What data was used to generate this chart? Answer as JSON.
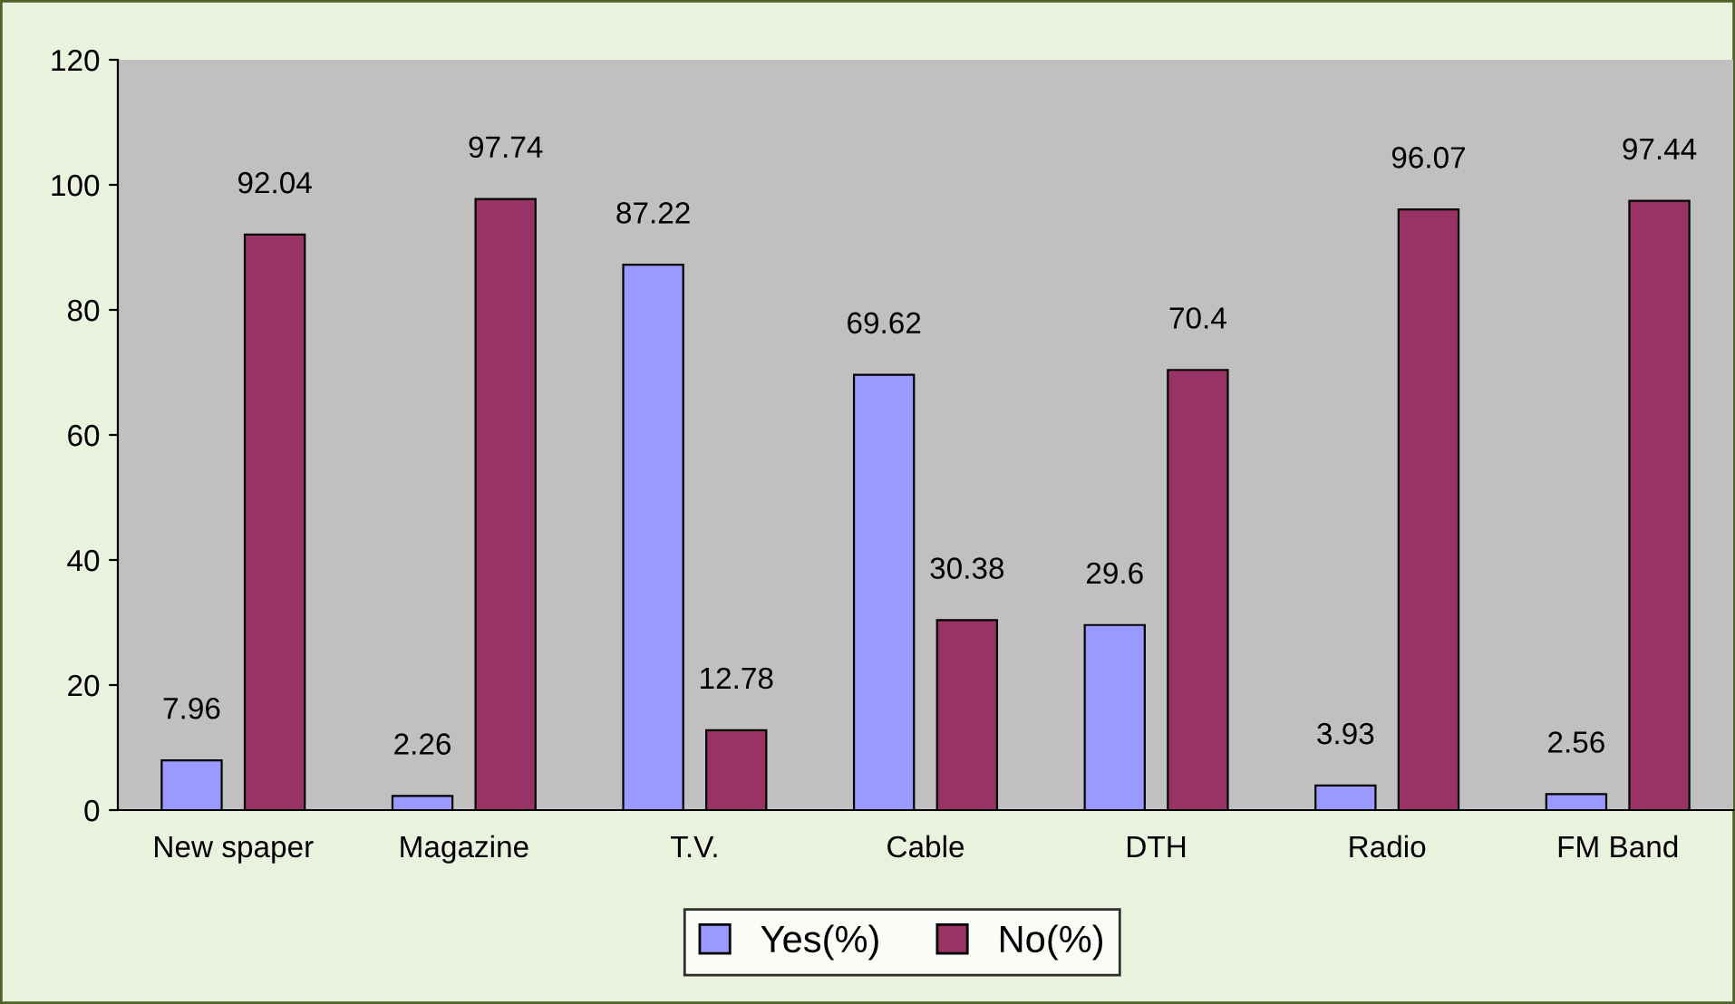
{
  "chart_data": {
    "type": "bar",
    "categories": [
      "New spaper",
      "Magazine",
      "T.V.",
      "Cable",
      "DTH",
      "Radio",
      "FM Band"
    ],
    "series": [
      {
        "name": "Yes(%)",
        "color": "#9999ff",
        "values": [
          7.96,
          2.26,
          87.22,
          69.62,
          29.6,
          3.93,
          2.56
        ]
      },
      {
        "name": "No(%)",
        "color": "#993366",
        "values": [
          92.04,
          97.74,
          12.78,
          30.38,
          70.4,
          96.07,
          97.44
        ]
      }
    ],
    "ylim": [
      0,
      120
    ],
    "yticks": [
      0,
      20,
      40,
      60,
      80,
      100,
      120
    ],
    "grid": false,
    "legend": "bottom",
    "data_labels": true
  }
}
